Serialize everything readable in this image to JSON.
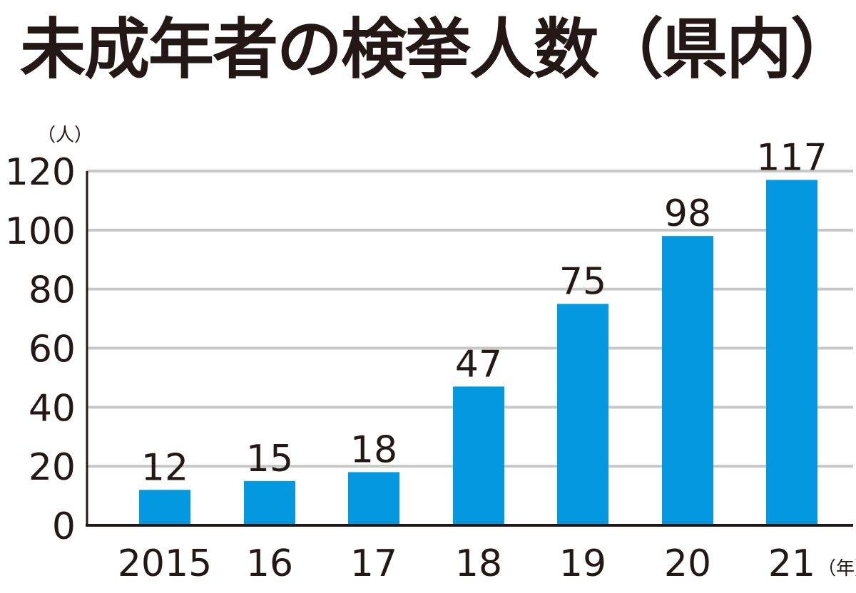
{
  "chart_data": {
    "type": "bar",
    "title": "未成年者の検挙人数（県内）",
    "ylabel": "（人）",
    "xlabel": "（年）",
    "categories": [
      "2015",
      "16",
      "17",
      "18",
      "19",
      "20",
      "21"
    ],
    "values": [
      12,
      15,
      18,
      47,
      75,
      98,
      117
    ],
    "ylim": [
      0,
      120
    ],
    "yticks": [
      0,
      20,
      40,
      60,
      80,
      100,
      120
    ],
    "grid": true,
    "bar_color": "#0398DF",
    "grid_color": "#c8c8c8",
    "axis_color": "#231815"
  }
}
